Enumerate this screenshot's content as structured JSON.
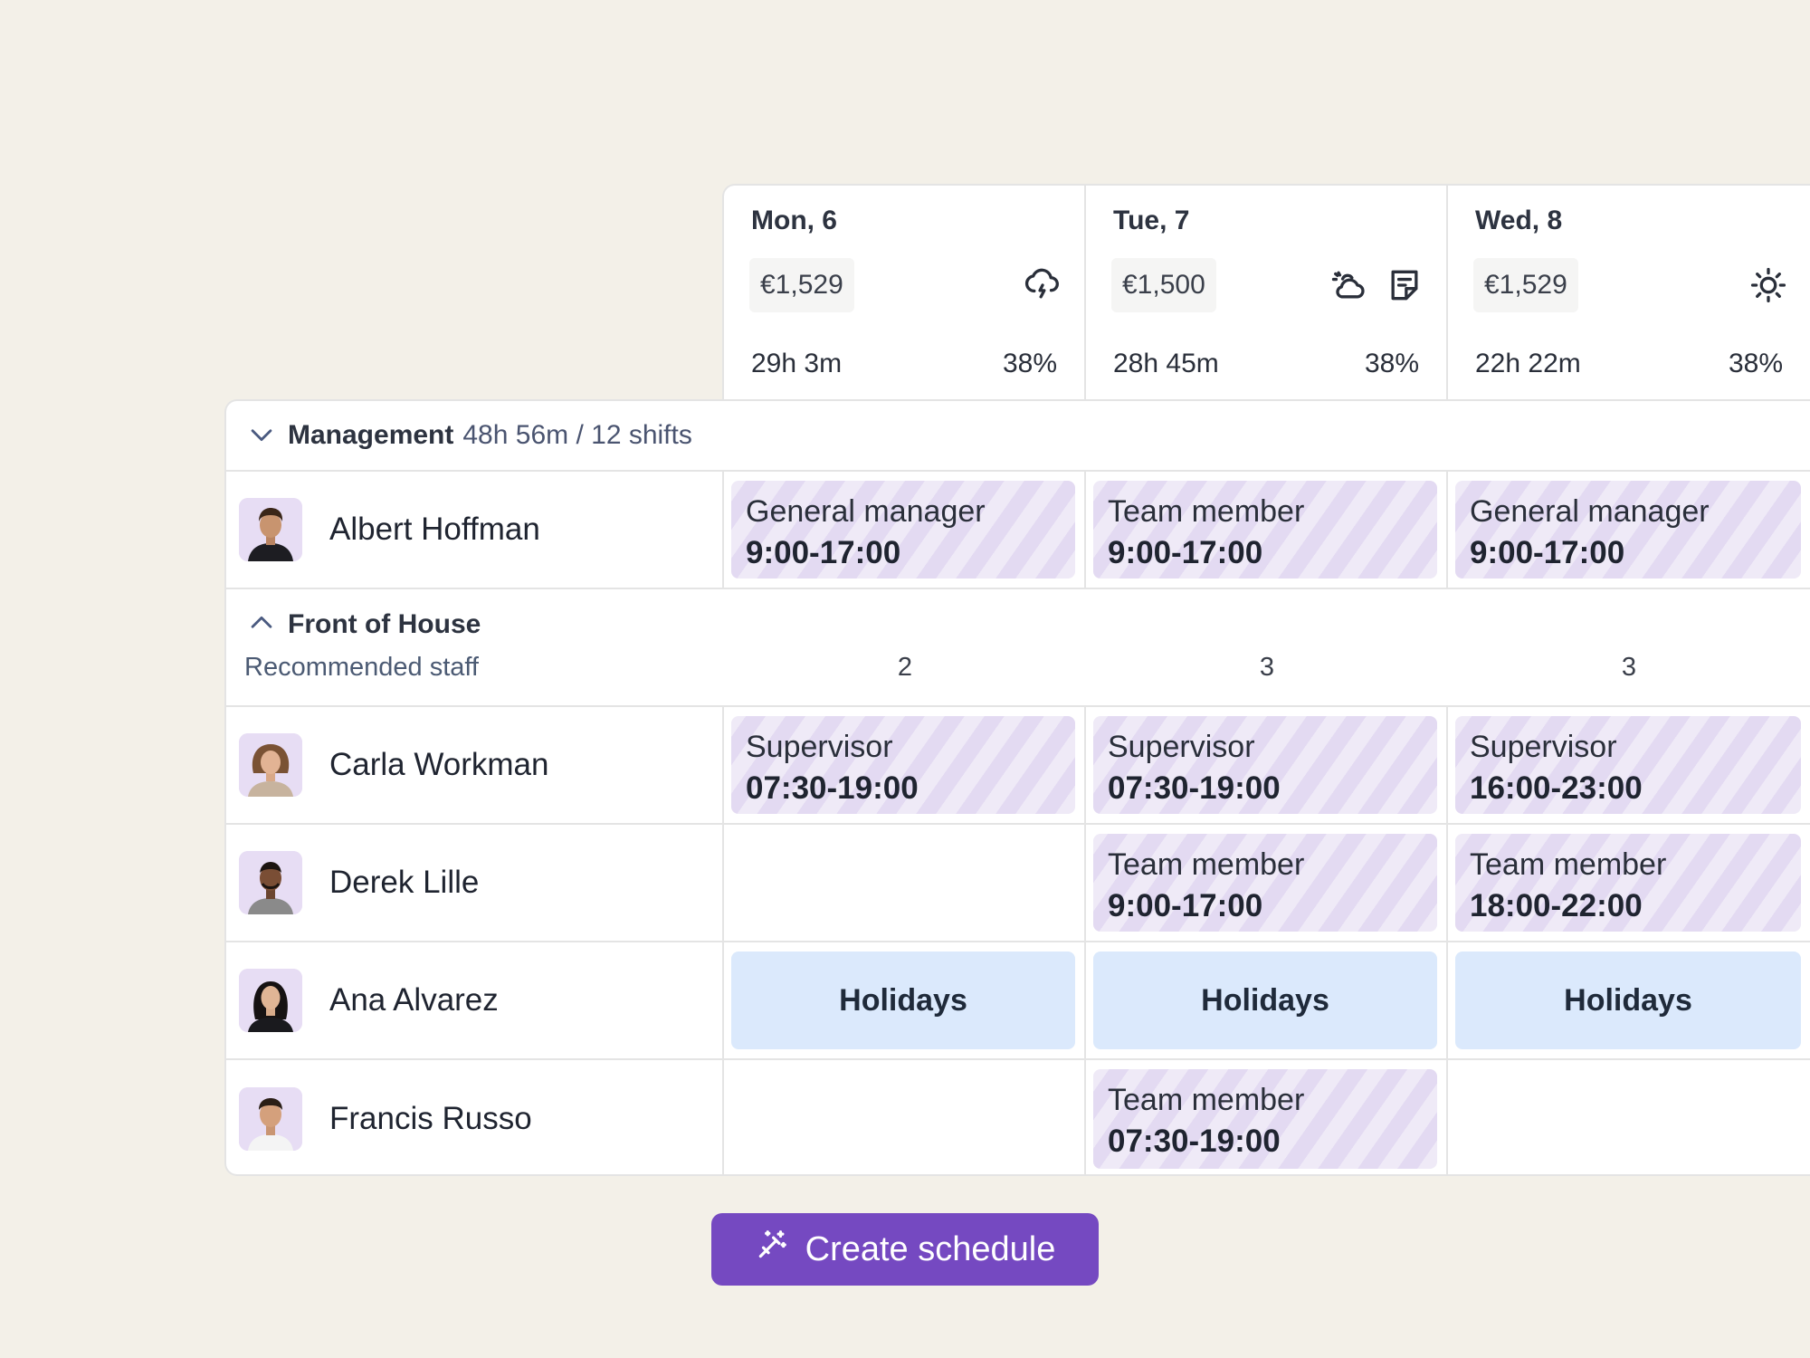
{
  "days": [
    {
      "name": "Mon, 6",
      "amount": "€1,529",
      "hours": "29h 3m",
      "percent": "38%",
      "icons": [
        "cloud-rain-icon"
      ]
    },
    {
      "name": "Tue, 7",
      "amount": "€1,500",
      "hours": "28h 45m",
      "percent": "38%",
      "icons": [
        "cloud-sun-icon",
        "note-icon"
      ]
    },
    {
      "name": "Wed, 8",
      "amount": "€1,529",
      "hours": "22h 22m",
      "percent": "38%",
      "icons": [
        "sun-icon"
      ]
    }
  ],
  "groups": {
    "management": {
      "title": "Management",
      "meta": "48h 56m / 12 shifts",
      "expanded": true
    },
    "front_of_house": {
      "title": "Front of House",
      "recommended_label": "Recommended staff",
      "recommended": [
        "2",
        "3",
        "3"
      ],
      "expanded": true
    }
  },
  "people": {
    "albert": {
      "name": "Albert Hoffman",
      "shifts": [
        {
          "role": "General manager",
          "time": "9:00-17:00"
        },
        {
          "role": "Team member",
          "time": "9:00-17:00"
        },
        {
          "role": "General manager",
          "time": "9:00-17:00"
        }
      ]
    },
    "carla": {
      "name": "Carla Workman",
      "shifts": [
        {
          "role": "Supervisor",
          "time": "07:30-19:00"
        },
        {
          "role": "Supervisor",
          "time": "07:30-19:00"
        },
        {
          "role": "Supervisor",
          "time": "16:00-23:00"
        }
      ]
    },
    "derek": {
      "name": "Derek Lille",
      "shifts": [
        null,
        {
          "role": "Team member",
          "time": "9:00-17:00"
        },
        {
          "role": "Team member",
          "time": "18:00-22:00"
        }
      ]
    },
    "ana": {
      "name": "Ana Alvarez",
      "holiday_label": "Holidays"
    },
    "francis": {
      "name": "Francis Russo",
      "shifts": [
        null,
        {
          "role": "Team member",
          "time": "07:30-19:00"
        },
        null
      ]
    }
  },
  "create_button": {
    "label": "Create schedule",
    "icon": "magic-wand-icon",
    "color": "#7549c1"
  },
  "colors": {
    "background": "#f3f0e8",
    "shift": "#efeaf7",
    "holiday": "#dbe9fc"
  }
}
